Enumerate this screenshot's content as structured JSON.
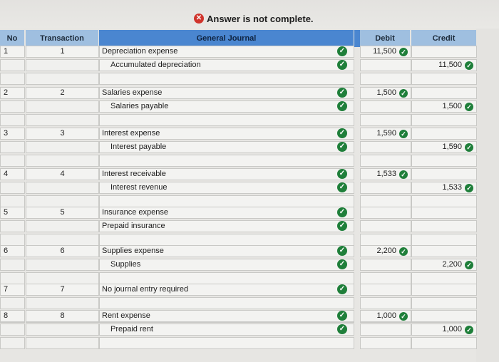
{
  "banner": {
    "message": "Answer is not complete.",
    "icon": "x-circle-icon",
    "icon_color": "#d0342c"
  },
  "headers": {
    "no": "No",
    "transaction": "Transaction",
    "journal": "General Journal",
    "debit": "Debit",
    "credit": "Credit"
  },
  "colors": {
    "header_light": "#9fbfe0",
    "header_dark": "#4a86d0",
    "check_green": "#1f7f3a"
  },
  "rows": [
    {
      "no": "1",
      "transaction": "1",
      "lines": [
        {
          "account": "Depreciation expense",
          "indent": false,
          "debit": "11,500",
          "credit": ""
        },
        {
          "account": "Accumulated depreciation",
          "indent": true,
          "debit": "",
          "credit": "11,500"
        }
      ]
    },
    {
      "no": "2",
      "transaction": "2",
      "lines": [
        {
          "account": "Salaries expense",
          "indent": false,
          "debit": "1,500",
          "credit": ""
        },
        {
          "account": "Salaries payable",
          "indent": true,
          "debit": "",
          "credit": "1,500"
        }
      ]
    },
    {
      "no": "3",
      "transaction": "3",
      "lines": [
        {
          "account": "Interest expense",
          "indent": false,
          "debit": "1,590",
          "credit": ""
        },
        {
          "account": "Interest payable",
          "indent": true,
          "debit": "",
          "credit": "1,590"
        }
      ]
    },
    {
      "no": "4",
      "transaction": "4",
      "lines": [
        {
          "account": "Interest receivable",
          "indent": false,
          "debit": "1,533",
          "credit": ""
        },
        {
          "account": "Interest revenue",
          "indent": true,
          "debit": "",
          "credit": "1,533"
        }
      ]
    },
    {
      "no": "5",
      "transaction": "5",
      "lines": [
        {
          "account": "Insurance expense",
          "indent": false,
          "debit": "",
          "credit": ""
        },
        {
          "account": "Prepaid insurance",
          "indent": false,
          "debit": "",
          "credit": ""
        }
      ]
    },
    {
      "no": "6",
      "transaction": "6",
      "lines": [
        {
          "account": "Supplies expense",
          "indent": false,
          "debit": "2,200",
          "credit": ""
        },
        {
          "account": "Supplies",
          "indent": true,
          "debit": "",
          "credit": "2,200"
        }
      ]
    },
    {
      "no": "7",
      "transaction": "7",
      "lines": [
        {
          "account": "No journal entry required",
          "indent": false,
          "debit": "",
          "credit": ""
        }
      ]
    },
    {
      "no": "8",
      "transaction": "8",
      "lines": [
        {
          "account": "Rent expense",
          "indent": false,
          "debit": "1,000",
          "credit": ""
        },
        {
          "account": "Prepaid rent",
          "indent": true,
          "debit": "",
          "credit": "1,000"
        }
      ]
    }
  ]
}
